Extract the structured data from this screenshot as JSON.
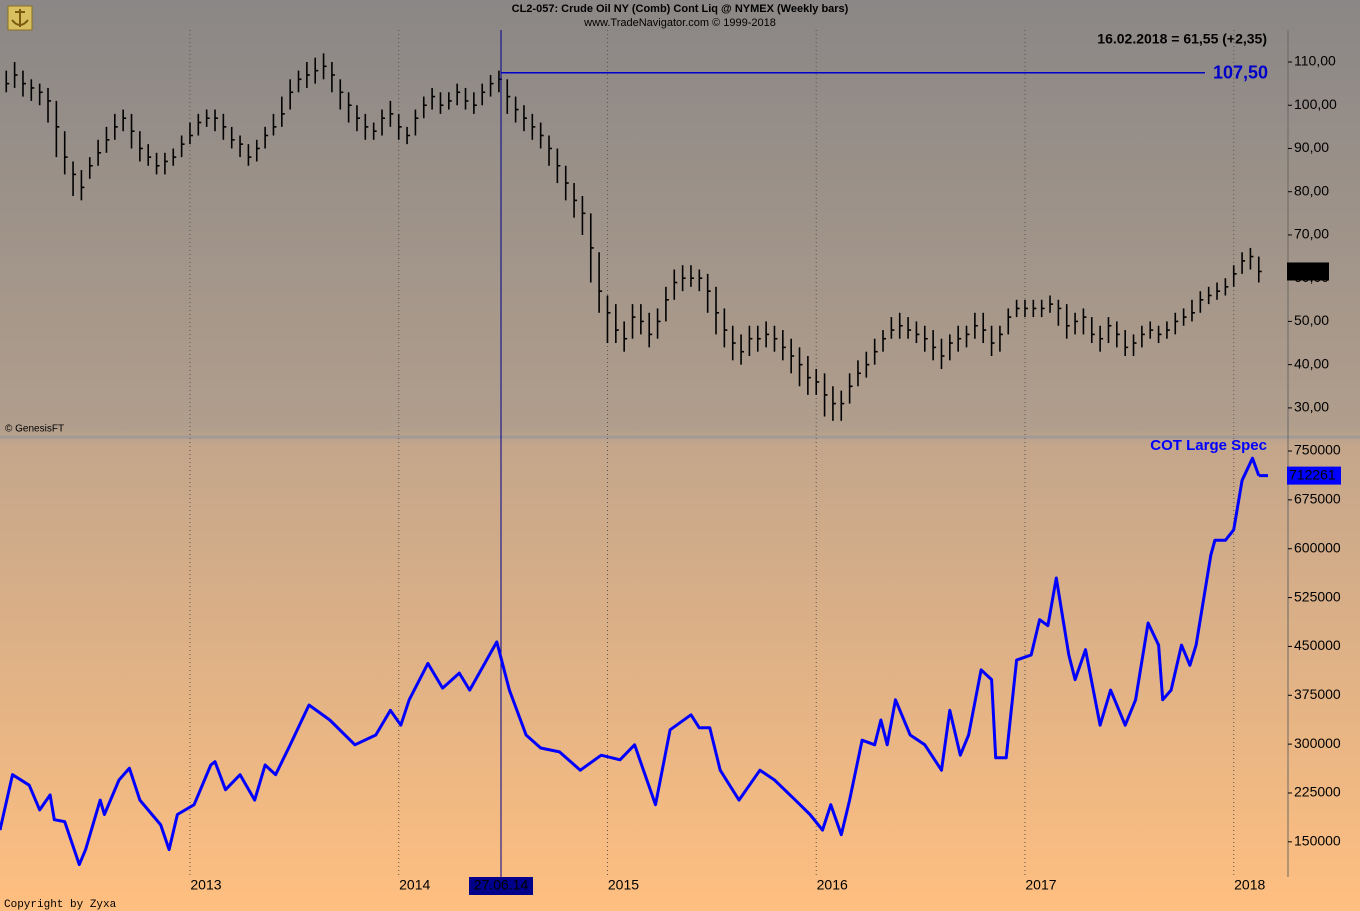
{
  "chart_data": [
    {
      "type": "ohlc",
      "title": "CL2-057:  Crude Oil NY (Comb) Cont Liq @ NYMEX  (Weekly bars)",
      "subtitle": "www.TradeNavigator.com © 1999-2018",
      "annotation": "16.02.2018 = 61,55 (+2,35)",
      "source": "© GenesisFT",
      "color": "#000000",
      "x": [
        2012.12,
        2012.16,
        2012.2,
        2012.24,
        2012.28,
        2012.32,
        2012.36,
        2012.4,
        2012.44,
        2012.48,
        2012.52,
        2012.56,
        2012.6,
        2012.64,
        2012.68,
        2012.72,
        2012.76,
        2012.8,
        2012.84,
        2012.88,
        2012.92,
        2012.96,
        2013.0,
        2013.04,
        2013.08,
        2013.12,
        2013.16,
        2013.2,
        2013.24,
        2013.28,
        2013.32,
        2013.36,
        2013.4,
        2013.44,
        2013.48,
        2013.52,
        2013.56,
        2013.6,
        2013.64,
        2013.68,
        2013.72,
        2013.76,
        2013.8,
        2013.84,
        2013.88,
        2013.92,
        2013.96,
        2014.0,
        2014.04,
        2014.08,
        2014.12,
        2014.16,
        2014.2,
        2014.24,
        2014.28,
        2014.32,
        2014.36,
        2014.4,
        2014.44,
        2014.48,
        2014.52,
        2014.56,
        2014.6,
        2014.64,
        2014.68,
        2014.72,
        2014.76,
        2014.8,
        2014.84,
        2014.88,
        2014.92,
        2014.96,
        2015.0,
        2015.04,
        2015.08,
        2015.12,
        2015.16,
        2015.2,
        2015.24,
        2015.28,
        2015.32,
        2015.36,
        2015.4,
        2015.44,
        2015.48,
        2015.52,
        2015.56,
        2015.6,
        2015.64,
        2015.68,
        2015.72,
        2015.76,
        2015.8,
        2015.84,
        2015.88,
        2015.92,
        2015.96,
        2016.0,
        2016.04,
        2016.08,
        2016.12,
        2016.16,
        2016.2,
        2016.24,
        2016.28,
        2016.32,
        2016.36,
        2016.4,
        2016.44,
        2016.48,
        2016.52,
        2016.56,
        2016.6,
        2016.64,
        2016.68,
        2016.72,
        2016.76,
        2016.8,
        2016.84,
        2016.88,
        2016.92,
        2016.96,
        2017.0,
        2017.04,
        2017.08,
        2017.12,
        2017.16,
        2017.2,
        2017.24,
        2017.28,
        2017.32,
        2017.36,
        2017.4,
        2017.44,
        2017.48,
        2017.52,
        2017.56,
        2017.6,
        2017.64,
        2017.68,
        2017.72,
        2017.76,
        2017.8,
        2017.84,
        2017.88,
        2017.92,
        2017.96,
        2018.0,
        2018.04,
        2018.08,
        2018.12
      ],
      "high": [
        108,
        110,
        108,
        106,
        105,
        104,
        101,
        94,
        87,
        85,
        88,
        92,
        95,
        98,
        99,
        98,
        94,
        91,
        89,
        89,
        90,
        93,
        96,
        98,
        99,
        99,
        98,
        95,
        93,
        91,
        92,
        95,
        98,
        102,
        106,
        108,
        110,
        111,
        112,
        110,
        106,
        103,
        100,
        98,
        96,
        99,
        101,
        98,
        95,
        99,
        102,
        104,
        103,
        103,
        105,
        104,
        103,
        105,
        107,
        108,
        106,
        102,
        100,
        98,
        96,
        93,
        90,
        86,
        82,
        79,
        75,
        66,
        56,
        54,
        50,
        54,
        54,
        52,
        53,
        58,
        62,
        63,
        63,
        62,
        61,
        58,
        53,
        49,
        47,
        49,
        49,
        50,
        49,
        48,
        46,
        44,
        42,
        39,
        38,
        35,
        34,
        38,
        41,
        43,
        46,
        48,
        51,
        52,
        51,
        50,
        49,
        48,
        46,
        47,
        49,
        49,
        52,
        52,
        49,
        49,
        53,
        55,
        55,
        55,
        55,
        56,
        55,
        54,
        52,
        53,
        51,
        49,
        51,
        50,
        48,
        47,
        49,
        50,
        49,
        50,
        52,
        53,
        55,
        57,
        58,
        59,
        60,
        63,
        66,
        67,
        65
      ],
      "low": [
        103,
        104,
        102,
        101,
        100,
        96,
        88,
        84,
        79,
        78,
        83,
        86,
        89,
        92,
        94,
        90,
        87,
        86,
        84,
        84,
        86,
        88,
        91,
        93,
        95,
        94,
        92,
        90,
        88,
        86,
        87,
        90,
        93,
        95,
        99,
        103,
        104,
        105,
        106,
        103,
        99,
        96,
        94,
        92,
        92,
        93,
        95,
        92,
        91,
        93,
        97,
        99,
        98,
        99,
        100,
        99,
        98,
        100,
        102,
        103,
        98,
        96,
        94,
        92,
        90,
        86,
        82,
        78,
        74,
        70,
        59,
        52,
        45,
        45,
        43,
        46,
        47,
        44,
        46,
        50,
        55,
        57,
        58,
        57,
        52,
        47,
        44,
        41,
        40,
        42,
        43,
        44,
        43,
        41,
        38,
        35,
        33,
        33,
        28,
        27,
        27,
        31,
        35,
        37,
        40,
        43,
        46,
        46,
        46,
        45,
        43,
        41,
        39,
        41,
        43,
        44,
        46,
        45,
        42,
        43,
        47,
        51,
        51,
        51,
        51,
        52,
        49,
        46,
        47,
        47,
        45,
        43,
        45,
        44,
        42,
        42,
        44,
        46,
        45,
        46,
        47,
        49,
        50,
        52,
        54,
        55,
        56,
        58,
        61,
        62,
        59
      ],
      "close": [
        105,
        107,
        105,
        104,
        103,
        101,
        95,
        88,
        84,
        81,
        86,
        89,
        92,
        95,
        97,
        94,
        90,
        88,
        86,
        87,
        88,
        91,
        93,
        96,
        97,
        97,
        95,
        92,
        91,
        88,
        90,
        93,
        95,
        98,
        103,
        106,
        107,
        108,
        109,
        107,
        103,
        100,
        97,
        95,
        94,
        97,
        98,
        95,
        93,
        97,
        100,
        102,
        100,
        101,
        103,
        101,
        100,
        103,
        105,
        106,
        102,
        99,
        97,
        95,
        93,
        90,
        86,
        82,
        78,
        75,
        67,
        57,
        52,
        48,
        46,
        51,
        50,
        47,
        50,
        55,
        59,
        60,
        60,
        60,
        57,
        52,
        48,
        45,
        43,
        46,
        46,
        47,
        46,
        44,
        42,
        40,
        37,
        36,
        33,
        31,
        31,
        35,
        38,
        40,
        43,
        46,
        48,
        49,
        48,
        47,
        46,
        44,
        42,
        45,
        46,
        47,
        49,
        48,
        45,
        47,
        51,
        53,
        53,
        53,
        53,
        54,
        53,
        49,
        50,
        51,
        47,
        46,
        49,
        47,
        44,
        45,
        47,
        48,
        47,
        48,
        50,
        51,
        52,
        55,
        56,
        57,
        58,
        61,
        64,
        65,
        61.55
      ],
      "last_label": "61,55",
      "xlim": [
        2012.09,
        2018.26
      ],
      "ylim": [
        23.5,
        117.4
      ],
      "yticks": [
        {
          "value": 30,
          "label": "30,00"
        },
        {
          "value": 40,
          "label": "40,00"
        },
        {
          "value": 50,
          "label": "50,00"
        },
        {
          "value": 60,
          "label": "60,00"
        },
        {
          "value": 70,
          "label": "70,00"
        },
        {
          "value": 80,
          "label": "80,00"
        },
        {
          "value": 90,
          "label": "90,00"
        },
        {
          "value": 100,
          "label": "100,00"
        },
        {
          "value": 110,
          "label": "110,00"
        }
      ],
      "hline": {
        "value": 107.5,
        "label": "107,50",
        "color": "#0000c8"
      },
      "vline": {
        "x": 2014.49,
        "label": "27.06.14",
        "color": "#00008b"
      }
    },
    {
      "type": "line",
      "footer": "Copyright by Zyxa",
      "series": [
        {
          "name": "COT Large Spec",
          "color": "#0000ff",
          "x": [
            2012.09,
            2012.15,
            2012.23,
            2012.28,
            2012.33,
            2012.35,
            2012.4,
            2012.47,
            2012.5,
            2012.57,
            2012.59,
            2012.66,
            2012.71,
            2012.76,
            2012.86,
            2012.9,
            2012.94,
            2013.02,
            2013.1,
            2013.12,
            2013.17,
            2013.24,
            2013.31,
            2013.36,
            2013.41,
            2013.48,
            2013.57,
            2013.67,
            2013.79,
            2013.89,
            2013.96,
            2014.01,
            2014.05,
            2014.14,
            2014.21,
            2014.29,
            2014.34,
            2014.4,
            2014.47,
            2014.53,
            2014.61,
            2014.68,
            2014.77,
            2014.87,
            2014.97,
            2015.06,
            2015.13,
            2015.23,
            2015.3,
            2015.4,
            2015.44,
            2015.49,
            2015.54,
            2015.63,
            2015.73,
            2015.8,
            2015.9,
            2015.97,
            2016.03,
            2016.07,
            2016.12,
            2016.16,
            2016.22,
            2016.28,
            2016.31,
            2016.34,
            2016.38,
            2016.45,
            2016.52,
            2016.6,
            2016.64,
            2016.69,
            2016.73,
            2016.79,
            2016.84,
            2016.86,
            2016.91,
            2016.96,
            2017.03,
            2017.07,
            2017.11,
            2017.15,
            2017.21,
            2017.24,
            2017.29,
            2017.36,
            2017.41,
            2017.48,
            2017.53,
            2017.59,
            2017.64,
            2017.66,
            2017.7,
            2017.75,
            2017.79,
            2017.82,
            2017.89,
            2017.91,
            2017.96,
            2018.0,
            2018.04,
            2018.09,
            2018.12
          ],
          "values": [
            168000,
            253000,
            237000,
            199000,
            222000,
            184000,
            181000,
            115000,
            138000,
            214000,
            192000,
            245000,
            263000,
            214000,
            176000,
            138000,
            192000,
            207000,
            268000,
            273000,
            230000,
            253000,
            214000,
            268000,
            253000,
            299000,
            360000,
            337000,
            299000,
            314000,
            352000,
            329000,
            368000,
            424000,
            386000,
            409000,
            383000,
            417000,
            457000,
            383000,
            314000,
            294000,
            288000,
            260000,
            283000,
            276000,
            299000,
            207000,
            322000,
            345000,
            325000,
            325000,
            260000,
            214000,
            260000,
            245000,
            214000,
            192000,
            168000,
            207000,
            161000,
            214000,
            306000,
            299000,
            337000,
            299000,
            368000,
            314000,
            299000,
            260000,
            352000,
            283000,
            314000,
            414000,
            399000,
            279000,
            279000,
            429000,
            437000,
            491000,
            482000,
            555000,
            437000,
            399000,
            445000,
            329000,
            383000,
            329000,
            368000,
            486000,
            452000,
            368000,
            383000,
            452000,
            421000,
            452000,
            590000,
            613000,
            613000,
            629000,
            705000,
            739000,
            712261
          ]
        }
      ],
      "xlim": [
        2012.09,
        2018.26
      ],
      "xticks": [
        2013,
        2014,
        2015,
        2016,
        2017,
        2018
      ],
      "ylim": [
        96000,
        770000
      ],
      "yticks": [
        150000,
        225000,
        300000,
        375000,
        450000,
        525000,
        600000,
        675000,
        750000
      ]
    }
  ]
}
